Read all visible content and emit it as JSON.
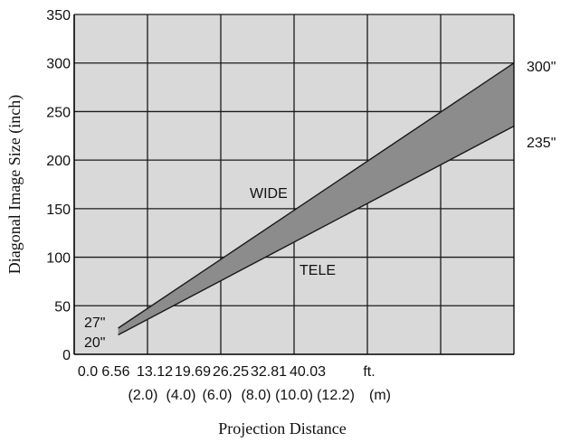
{
  "chart_data": {
    "type": "area",
    "title": "",
    "xlabel": "Projection Distance",
    "ylabel": "Diagonal Image Size (inch)",
    "xlim": [
      0,
      12
    ],
    "ylim": [
      0,
      350
    ],
    "yticks": [
      "0",
      "50",
      "100",
      "150",
      "200",
      "250",
      "300",
      "350"
    ],
    "xticks_ft": [
      "0.0",
      "6.56",
      "13.12",
      "19.69",
      "26.25",
      "32.81",
      "40.03",
      "ft."
    ],
    "xticks_m": [
      "(2.0)",
      "(4.0)",
      "(6.0)",
      "(8.0)",
      "(10.0)",
      "(12.2)",
      "(m)"
    ],
    "series": [
      {
        "name": "WIDE",
        "x": [
          1.2,
          12.0
        ],
        "y": [
          27,
          300
        ]
      },
      {
        "name": "TELE",
        "x": [
          1.2,
          12.0
        ],
        "y": [
          20,
          235
        ]
      }
    ],
    "end_labels": {
      "wide_start": "27\"",
      "tele_start": "20\"",
      "wide_end": "300\"",
      "tele_end": "235\""
    },
    "grid": true,
    "colors": {
      "plot_background": "#d9d9d9",
      "band_fill": "#8c8c8c",
      "lines": "#1a1a1a"
    }
  }
}
